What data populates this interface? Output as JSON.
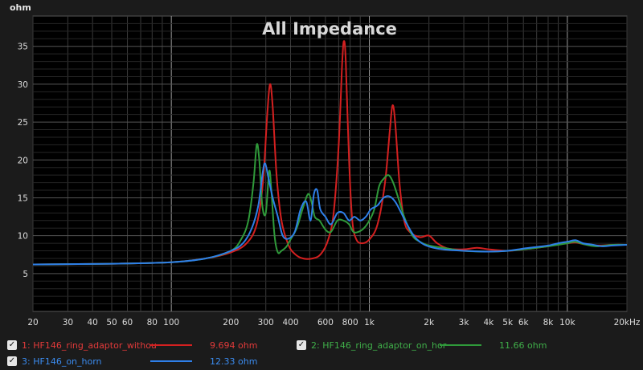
{
  "chart_data": {
    "type": "line",
    "title": "All Impedance",
    "ylabel": "ohm",
    "xlabel": "",
    "x_scale": "log",
    "xlim": [
      20,
      20000
    ],
    "ylim": [
      0,
      39
    ],
    "grid": true,
    "y_ticks": [
      5,
      10,
      15,
      20,
      25,
      30,
      35
    ],
    "x_ticks": [
      {
        "v": 20,
        "t": "20"
      },
      {
        "v": 30,
        "t": "30"
      },
      {
        "v": 40,
        "t": "40"
      },
      {
        "v": 50,
        "t": "50"
      },
      {
        "v": 60,
        "t": "60"
      },
      {
        "v": 80,
        "t": "80"
      },
      {
        "v": 100,
        "t": "100"
      },
      {
        "v": 200,
        "t": "200"
      },
      {
        "v": 300,
        "t": "300"
      },
      {
        "v": 400,
        "t": "400"
      },
      {
        "v": 600,
        "t": "600"
      },
      {
        "v": 800,
        "t": "800"
      },
      {
        "v": 1000,
        "t": "1k"
      },
      {
        "v": 2000,
        "t": "2k"
      },
      {
        "v": 3000,
        "t": "3k"
      },
      {
        "v": 4000,
        "t": "4k"
      },
      {
        "v": 5000,
        "t": "5k"
      },
      {
        "v": 6000,
        "t": "6k"
      },
      {
        "v": 8000,
        "t": "8k"
      },
      {
        "v": 10000,
        "t": "10k"
      },
      {
        "v": 20000,
        "t": "20kHz"
      }
    ],
    "series": [
      {
        "name": "HF146_ring_adaptor_withou",
        "number": "1:",
        "color": "#d42020",
        "value_readout": "9.694 ohm",
        "points": [
          [
            20,
            6.2
          ],
          [
            50,
            6.3
          ],
          [
            100,
            6.5
          ],
          [
            150,
            7.0
          ],
          [
            200,
            7.8
          ],
          [
            240,
            9.0
          ],
          [
            270,
            11.5
          ],
          [
            290,
            17.0
          ],
          [
            305,
            26.0
          ],
          [
            315,
            30.0
          ],
          [
            325,
            27.0
          ],
          [
            340,
            18.0
          ],
          [
            360,
            12.0
          ],
          [
            390,
            8.8
          ],
          [
            420,
            7.6
          ],
          [
            460,
            7.0
          ],
          [
            520,
            7.0
          ],
          [
            570,
            7.6
          ],
          [
            620,
            9.5
          ],
          [
            660,
            13.0
          ],
          [
            700,
            22.0
          ],
          [
            730,
            33.0
          ],
          [
            745,
            35.7
          ],
          [
            760,
            33.0
          ],
          [
            790,
            20.0
          ],
          [
            820,
            12.0
          ],
          [
            860,
            9.5
          ],
          [
            920,
            9.0
          ],
          [
            1000,
            9.5
          ],
          [
            1100,
            11.5
          ],
          [
            1200,
            17.0
          ],
          [
            1270,
            24.0
          ],
          [
            1310,
            27.2
          ],
          [
            1350,
            25.0
          ],
          [
            1420,
            17.0
          ],
          [
            1500,
            12.0
          ],
          [
            1600,
            10.5
          ],
          [
            1800,
            9.8
          ],
          [
            2000,
            10.0
          ],
          [
            2200,
            9.0
          ],
          [
            2500,
            8.3
          ],
          [
            3000,
            8.2
          ],
          [
            3500,
            8.4
          ],
          [
            4000,
            8.2
          ],
          [
            5000,
            8.0
          ],
          [
            6000,
            8.2
          ],
          [
            7000,
            8.4
          ],
          [
            8000,
            8.6
          ],
          [
            9000,
            8.9
          ],
          [
            10000,
            9.0
          ],
          [
            11000,
            9.1
          ],
          [
            12000,
            8.9
          ],
          [
            14000,
            8.7
          ],
          [
            17000,
            8.8
          ],
          [
            20000,
            8.8
          ]
        ]
      },
      {
        "name": "HF146_ring_adaptor_on_hor",
        "number": "2:",
        "color": "#2f9a3a",
        "value_readout": "11.66 ohm",
        "points": [
          [
            20,
            6.2
          ],
          [
            50,
            6.3
          ],
          [
            100,
            6.5
          ],
          [
            150,
            7.0
          ],
          [
            200,
            8.0
          ],
          [
            225,
            9.5
          ],
          [
            245,
            12.0
          ],
          [
            260,
            17.0
          ],
          [
            270,
            22.0
          ],
          [
            278,
            20.0
          ],
          [
            288,
            14.0
          ],
          [
            300,
            13.0
          ],
          [
            312,
            18.5
          ],
          [
            320,
            16.0
          ],
          [
            332,
            10.0
          ],
          [
            345,
            7.8
          ],
          [
            360,
            8.0
          ],
          [
            380,
            8.5
          ],
          [
            400,
            9.5
          ],
          [
            430,
            11.0
          ],
          [
            460,
            13.5
          ],
          [
            490,
            15.5
          ],
          [
            510,
            14.5
          ],
          [
            530,
            12.5
          ],
          [
            560,
            12.0
          ],
          [
            600,
            10.8
          ],
          [
            640,
            10.5
          ],
          [
            690,
            12.0
          ],
          [
            740,
            12.0
          ],
          [
            790,
            11.5
          ],
          [
            830,
            10.5
          ],
          [
            880,
            10.5
          ],
          [
            940,
            11.0
          ],
          [
            1000,
            12.0
          ],
          [
            1060,
            13.5
          ],
          [
            1120,
            16.5
          ],
          [
            1180,
            17.5
          ],
          [
            1250,
            18.0
          ],
          [
            1320,
            17.0
          ],
          [
            1400,
            15.0
          ],
          [
            1500,
            12.5
          ],
          [
            1650,
            10.0
          ],
          [
            1800,
            9.2
          ],
          [
            2000,
            8.7
          ],
          [
            2500,
            8.3
          ],
          [
            3000,
            8.0
          ],
          [
            4000,
            7.9
          ],
          [
            5000,
            8.0
          ],
          [
            6000,
            8.2
          ],
          [
            7000,
            8.4
          ],
          [
            8000,
            8.6
          ],
          [
            9000,
            8.8
          ],
          [
            10000,
            9.0
          ],
          [
            11000,
            9.2
          ],
          [
            12000,
            8.9
          ],
          [
            14000,
            8.6
          ],
          [
            17000,
            8.8
          ],
          [
            20000,
            8.8
          ]
        ]
      },
      {
        "name": "HF146_on_horn",
        "number": "3:",
        "color": "#2e7fe8",
        "value_readout": "12.33 ohm",
        "points": [
          [
            20,
            6.2
          ],
          [
            50,
            6.3
          ],
          [
            100,
            6.5
          ],
          [
            150,
            7.0
          ],
          [
            200,
            8.0
          ],
          [
            230,
            9.0
          ],
          [
            255,
            11.0
          ],
          [
            275,
            14.0
          ],
          [
            290,
            18.5
          ],
          [
            298,
            19.5
          ],
          [
            310,
            17.5
          ],
          [
            325,
            15.0
          ],
          [
            345,
            12.5
          ],
          [
            365,
            10.0
          ],
          [
            390,
            9.6
          ],
          [
            420,
            10.5
          ],
          [
            450,
            13.5
          ],
          [
            480,
            14.5
          ],
          [
            505,
            12.0
          ],
          [
            525,
            15.5
          ],
          [
            545,
            16.0
          ],
          [
            565,
            13.5
          ],
          [
            600,
            12.5
          ],
          [
            640,
            11.5
          ],
          [
            690,
            13.0
          ],
          [
            740,
            13.0
          ],
          [
            790,
            12.0
          ],
          [
            840,
            12.5
          ],
          [
            900,
            12.0
          ],
          [
            960,
            12.5
          ],
          [
            1020,
            13.5
          ],
          [
            1100,
            14.0
          ],
          [
            1180,
            15.0
          ],
          [
            1260,
            15.2
          ],
          [
            1350,
            14.5
          ],
          [
            1450,
            13.0
          ],
          [
            1550,
            11.5
          ],
          [
            1700,
            9.8
          ],
          [
            1900,
            8.8
          ],
          [
            2200,
            8.3
          ],
          [
            2600,
            8.1
          ],
          [
            3000,
            8.0
          ],
          [
            4000,
            7.9
          ],
          [
            5000,
            8.0
          ],
          [
            6000,
            8.3
          ],
          [
            7000,
            8.5
          ],
          [
            8000,
            8.7
          ],
          [
            9000,
            9.0
          ],
          [
            10000,
            9.2
          ],
          [
            11000,
            9.4
          ],
          [
            12000,
            9.0
          ],
          [
            13500,
            8.8
          ],
          [
            15000,
            8.6
          ],
          [
            17000,
            8.7
          ],
          [
            20000,
            8.8
          ]
        ]
      }
    ]
  }
}
